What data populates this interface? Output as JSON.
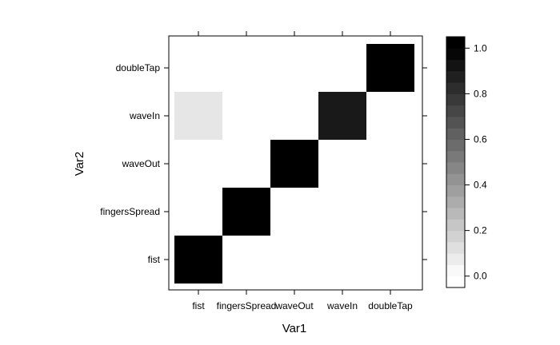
{
  "chart_data": {
    "type": "heatmap",
    "xlabel": "Var1",
    "ylabel": "Var2",
    "x_categories": [
      "fist",
      "fingersSpread",
      "waveOut",
      "waveIn",
      "doubleTap"
    ],
    "y_categories": [
      "fist",
      "fingersSpread",
      "waveOut",
      "waveIn",
      "doubleTap"
    ],
    "cells": [
      {
        "x": "fist",
        "y": "fist",
        "value": 1.0
      },
      {
        "x": "fingersSpread",
        "y": "fingersSpread",
        "value": 1.0
      },
      {
        "x": "waveOut",
        "y": "waveOut",
        "value": 1.0
      },
      {
        "x": "waveIn",
        "y": "waveIn",
        "value": 0.9
      },
      {
        "x": "fist",
        "y": "waveIn",
        "value": 0.1
      },
      {
        "x": "doubleTap",
        "y": "doubleTap",
        "value": 1.0
      }
    ],
    "colorbar": {
      "range": [
        -0.05,
        1.05
      ],
      "ticks": [
        0.0,
        0.2,
        0.4,
        0.6,
        0.8,
        1.0
      ],
      "tick_labels": [
        "0.0",
        "0.2",
        "0.4",
        "0.6",
        "0.8",
        "1.0"
      ],
      "low_color": "#ffffff",
      "high_color": "#000000"
    }
  }
}
